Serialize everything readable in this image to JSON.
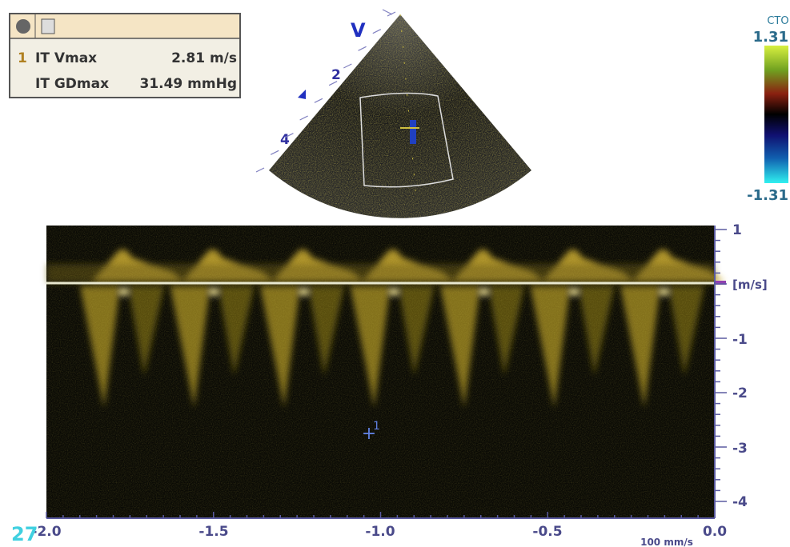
{
  "measurements": {
    "rows": [
      {
        "index": "1",
        "label": "IT Vmax",
        "value": "2.81 m/s"
      },
      {
        "label": "IT GDmax",
        "value": "31.49 mmHg"
      }
    ]
  },
  "sector": {
    "mode": "V",
    "depth_labels": [
      "2",
      "4"
    ]
  },
  "color_bar": {
    "title": "CTO",
    "max": "1.31",
    "min": "-1.31"
  },
  "doppler": {
    "y_labels": [
      "1",
      "[m/s]",
      "-1",
      "-2",
      "-3",
      "-4"
    ],
    "x_labels": [
      "-2.0",
      "-1.5",
      "-1.0",
      "-0.5",
      "0.0"
    ],
    "sweep": "100 mm/s",
    "cursor_label": "1",
    "frame": "27"
  }
}
